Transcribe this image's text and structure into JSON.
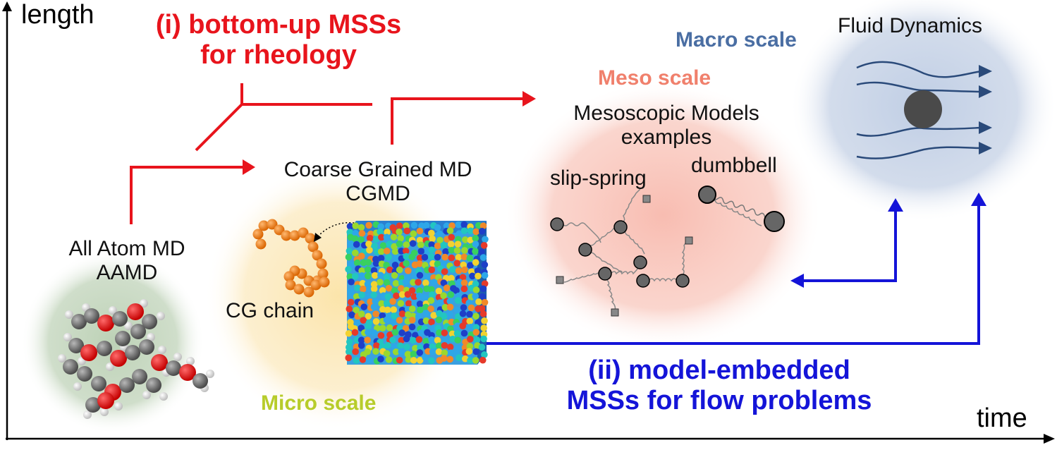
{
  "axes": {
    "y_label": "length",
    "x_label": "time"
  },
  "bottom_up": {
    "line1": "(i) bottom-up MSSs",
    "line2": "for rheology",
    "color": "#e8141c"
  },
  "model_embedded": {
    "line1": "(ii) model-embedded",
    "line2": "MSSs for flow problems",
    "color": "#1414d8"
  },
  "aamd": {
    "line1": "All Atom MD",
    "line2": "AAMD",
    "bg_color": "#c5d6bf"
  },
  "cgmd": {
    "line1": "Coarse Grained MD",
    "line2": "CGMD",
    "chain_label": "CG chain",
    "bg_color": "#fbe7b2"
  },
  "micro": {
    "label": "Micro scale",
    "color": "#b7cc2a"
  },
  "meso": {
    "label": "Meso scale",
    "color": "#f0806c",
    "bg_color": "#f9c8be",
    "models_line1": "Mesoscopic Models",
    "models_line2": "examples",
    "slip_spring": "slip-spring",
    "dumbbell": "dumbbell"
  },
  "macro": {
    "label": "Macro scale",
    "color": "#4a6ea3",
    "bg_color": "#c9d4e6",
    "fluid": "Fluid Dynamics"
  }
}
